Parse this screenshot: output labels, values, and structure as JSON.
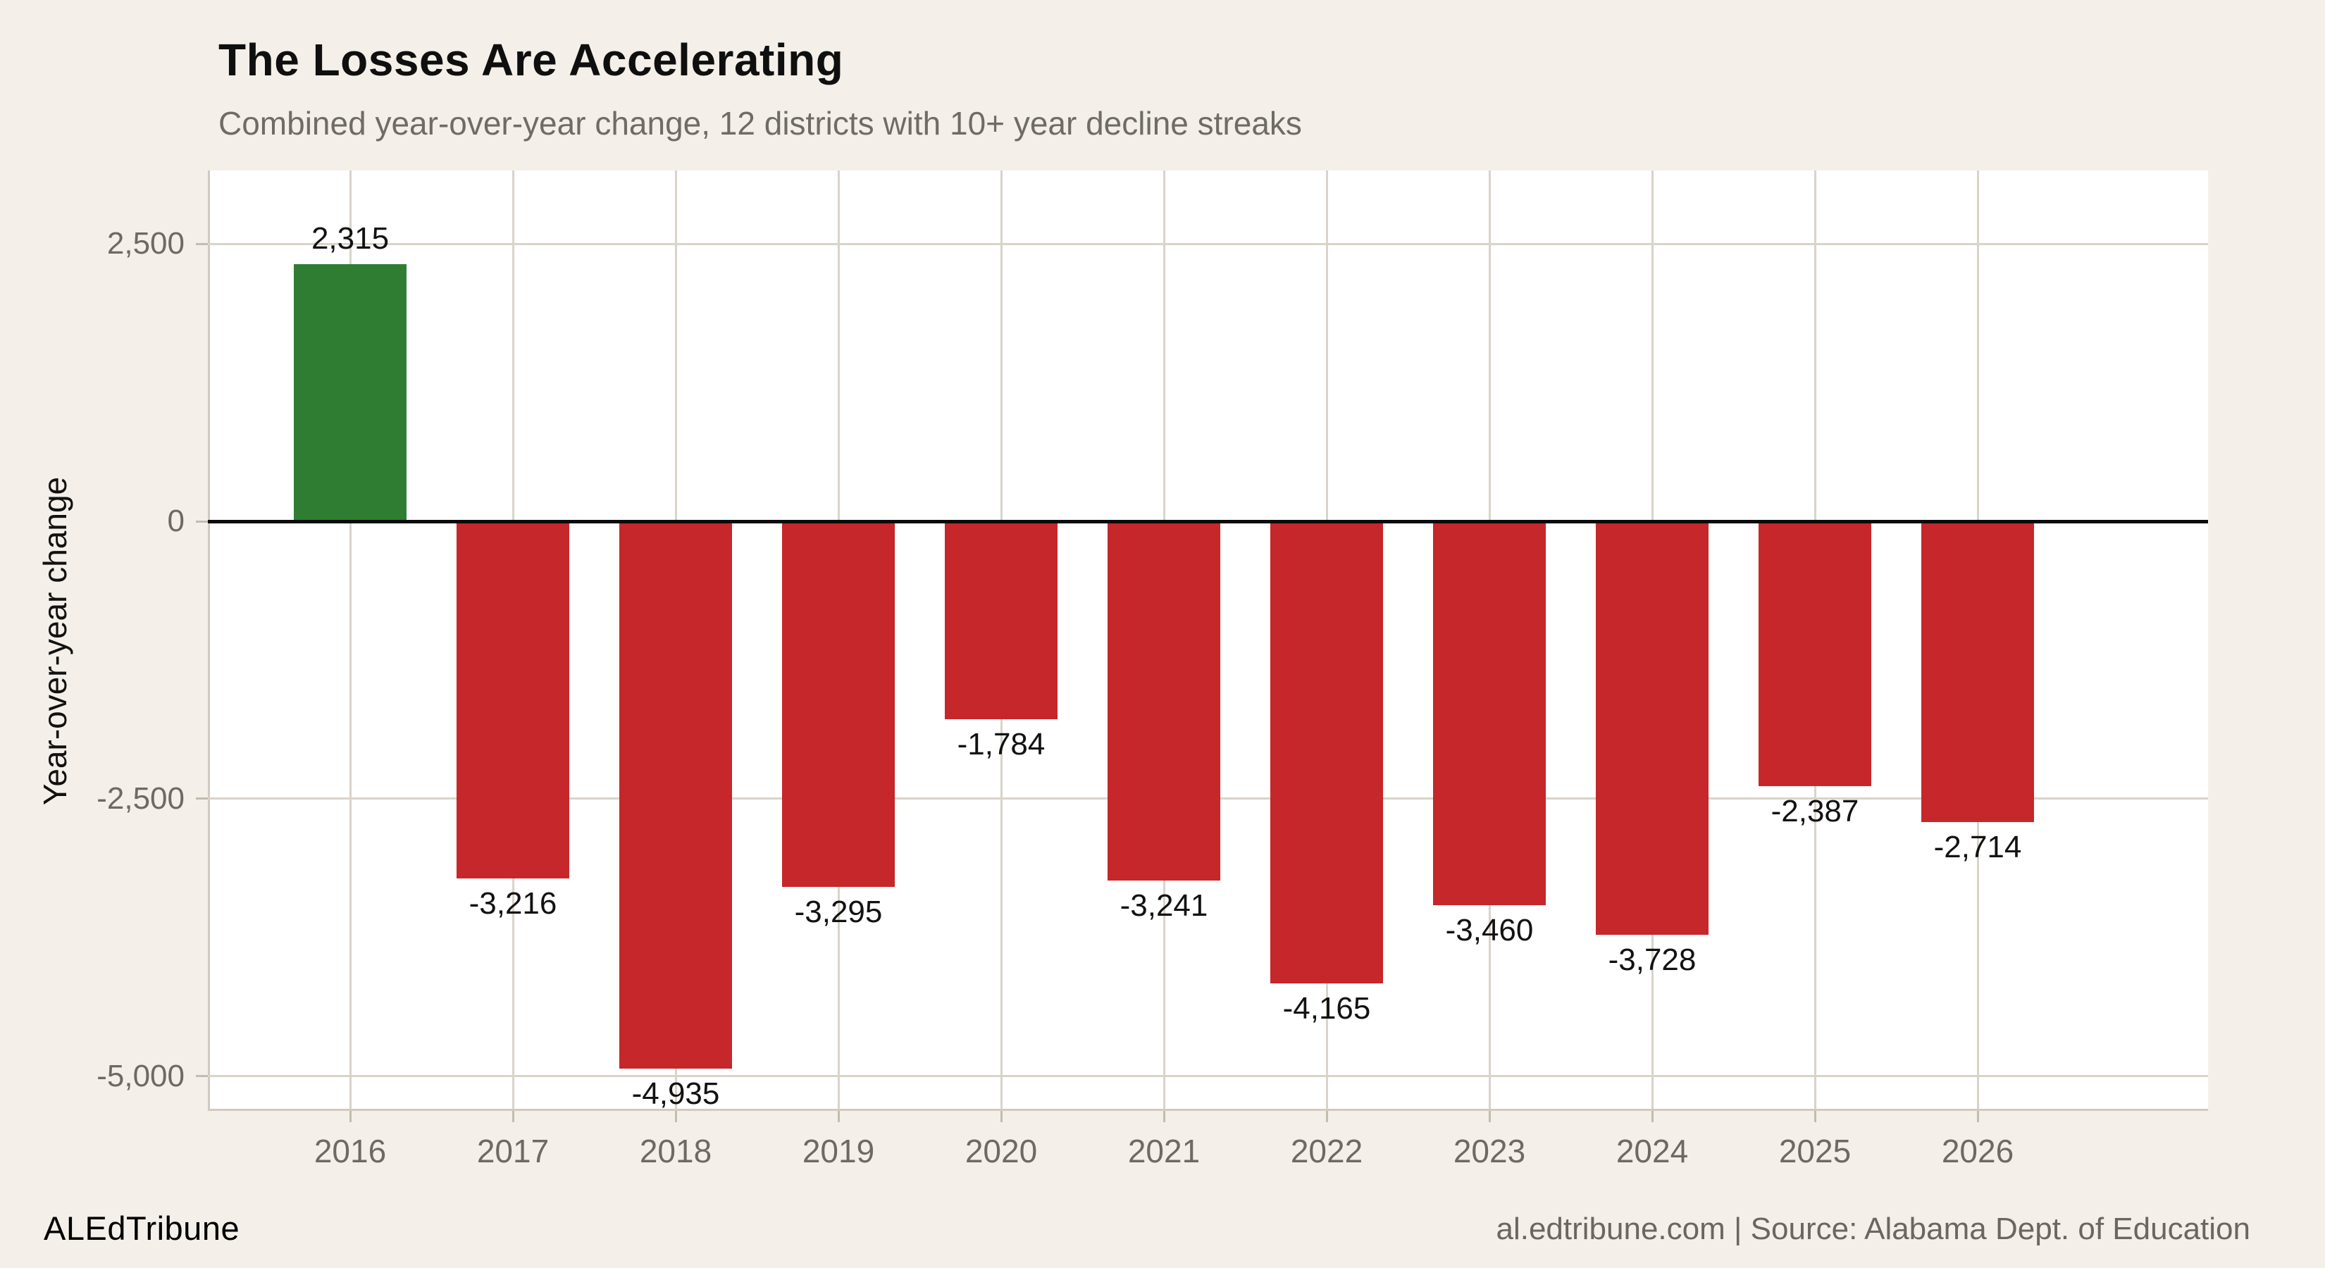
{
  "header": {
    "title": "The Losses Are Accelerating",
    "subtitle": "Combined year-over-year change, 12 districts with 10+ year decline streaks"
  },
  "chart_data": {
    "type": "bar",
    "title": "The Losses Are Accelerating",
    "subtitle": "Combined year-over-year change, 12 districts with 10+ year decline streaks",
    "xlabel": "",
    "ylabel": "Year-over-year change",
    "categories": [
      "2016",
      "2017",
      "2018",
      "2019",
      "2020",
      "2021",
      "2022",
      "2023",
      "2024",
      "2025",
      "2026"
    ],
    "values": [
      2315,
      -3216,
      -4935,
      -3295,
      -1784,
      -3241,
      -4165,
      -3460,
      -3728,
      -2387,
      -2714
    ],
    "value_labels": [
      "2,315",
      "-3,216",
      "-4,935",
      "-3,295",
      "-1,784",
      "-3,241",
      "-4,165",
      "-3,460",
      "-3,728",
      "-2,387",
      "-2,714"
    ],
    "ylim": [
      -5300,
      3165
    ],
    "yticks": [
      {
        "value": 2500,
        "label": "2,500"
      },
      {
        "value": 0,
        "label": "0"
      },
      {
        "value": -2500,
        "label": "-2,500"
      },
      {
        "value": -5000,
        "label": "-5,000"
      }
    ],
    "grid": true,
    "legend": "none",
    "positive_color": "#2e7d32",
    "negative_color": "#c5272b"
  },
  "colors": {
    "background": "#f4f0e9",
    "panel": "#ffffff",
    "gridline": "#d9d3c9",
    "axis_line": "#d0cabf",
    "zero_line": "#0a0a0a",
    "tick_mark": "#c2bcb1",
    "tick_label": "#6e6a62",
    "subtitle_text": "#6f6b66",
    "title_text": "#0f0f0f",
    "bar_label": "#121212",
    "footer_text": "#6b665e",
    "brand_text": "#000000"
  },
  "footer": {
    "brand": "ALEdTribune",
    "attribution": "al.edtribune.com | Source: Alabama Dept. of Education"
  }
}
